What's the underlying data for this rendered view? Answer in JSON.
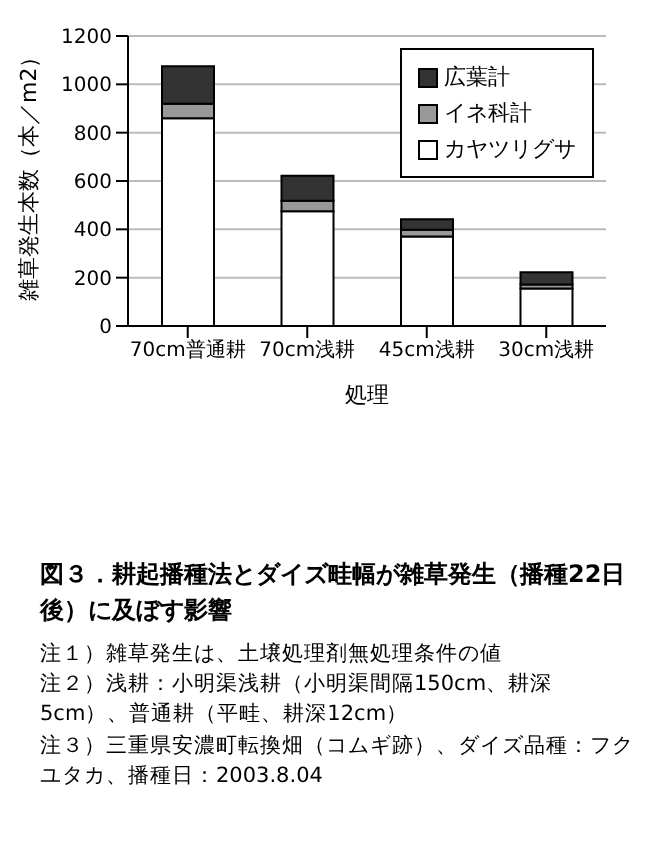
{
  "chart_data": {
    "type": "bar",
    "title": "図３．耕起播種法とダイズ畦幅が雑草発生（播種22日後）に及ぼす影響",
    "xlabel": "処理",
    "ylabel": "雑草発生本数（本／m2）",
    "categories": [
      "70cm普通耕",
      "70cm浅耕",
      "45cm浅耕",
      "30cm浅耕"
    ],
    "stacked": true,
    "series": [
      {
        "name": "カヤツリグサ",
        "color": "#ffffff",
        "values": [
          860,
          475,
          370,
          155
        ]
      },
      {
        "name": "イネ科計",
        "color": "#999999",
        "values": [
          60,
          43,
          28,
          17
        ]
      },
      {
        "name": "広葉計",
        "color": "#333333",
        "values": [
          155,
          104,
          44,
          50
        ]
      }
    ],
    "ylim": [
      0,
      1200
    ],
    "yticks": [
      0,
      200,
      400,
      600,
      800,
      1000,
      1200
    ],
    "grid": "y",
    "legend": "top right",
    "annotations": [
      "注１）雑草発生は、土壌処理剤無処理条件の値",
      "注２）浅耕：小明渠浅耕（小明渠間隔150cm、耕深5cm）、普通耕（平畦、耕深12cm）",
      "注３）三重県安濃町転換畑（コムギ跡）、ダイズ品種：フクユタカ、播種日：2003.8.04"
    ]
  }
}
